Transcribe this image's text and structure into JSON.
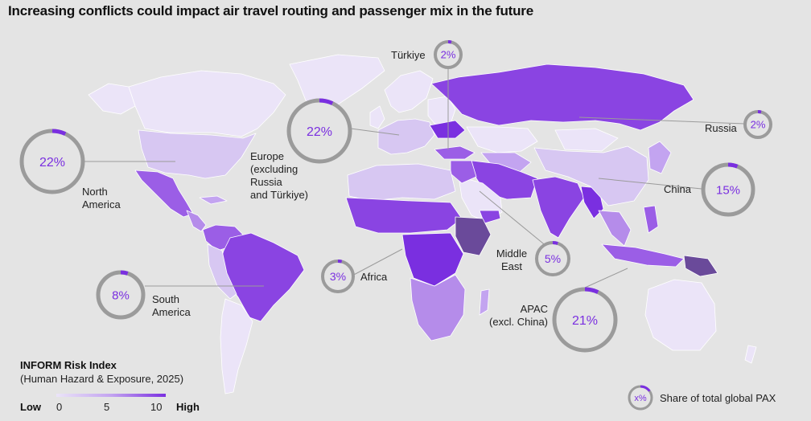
{
  "title": "Increasing conflicts could impact air travel routing and passenger mix in the future",
  "regions": [
    {
      "id": "north-america",
      "label": [
        "North",
        "America"
      ],
      "share": "22%",
      "fraction": 0.07
    },
    {
      "id": "europe",
      "label": [
        "Europe",
        "(excluding",
        "Russia",
        "and Türkiye)"
      ],
      "share": "22%",
      "fraction": 0.07
    },
    {
      "id": "turkiye",
      "label": [
        "Türkiye"
      ],
      "share": "2%",
      "fraction": 0.04
    },
    {
      "id": "russia",
      "label": [
        "Russia"
      ],
      "share": "2%",
      "fraction": 0.04
    },
    {
      "id": "china",
      "label": [
        "China"
      ],
      "share": "15%",
      "fraction": 0.06
    },
    {
      "id": "south-america",
      "label": [
        "South",
        "America"
      ],
      "share": "8%",
      "fraction": 0.05
    },
    {
      "id": "africa",
      "label": [
        "Africa"
      ],
      "share": "3%",
      "fraction": 0.04
    },
    {
      "id": "middle-east",
      "label": [
        "Middle",
        "East"
      ],
      "share": "5%",
      "fraction": 0.05
    },
    {
      "id": "apac",
      "label": [
        "APAC",
        "(excl. China)"
      ],
      "share": "21%",
      "fraction": 0.07
    }
  ],
  "legend": {
    "title": "INFORM Risk Index",
    "subtitle": "(Human Hazard & Exposure, 2025)",
    "low": "Low",
    "high": "High",
    "ticks": [
      "0",
      "5",
      "10"
    ],
    "share_symbol": "x%",
    "share_label": "Share of total global PAX"
  },
  "colors": {
    "background": "#e4e4e4",
    "ring_track": "#9b9b9b",
    "ring_accent": "#7a2fe0",
    "text_accent": "#7a2fe0",
    "risk_low": "#ebe4f8",
    "risk_mid": "#c3a4f0",
    "risk_high": "#7a2fe0",
    "risk_max": "#6a4a9a"
  }
}
